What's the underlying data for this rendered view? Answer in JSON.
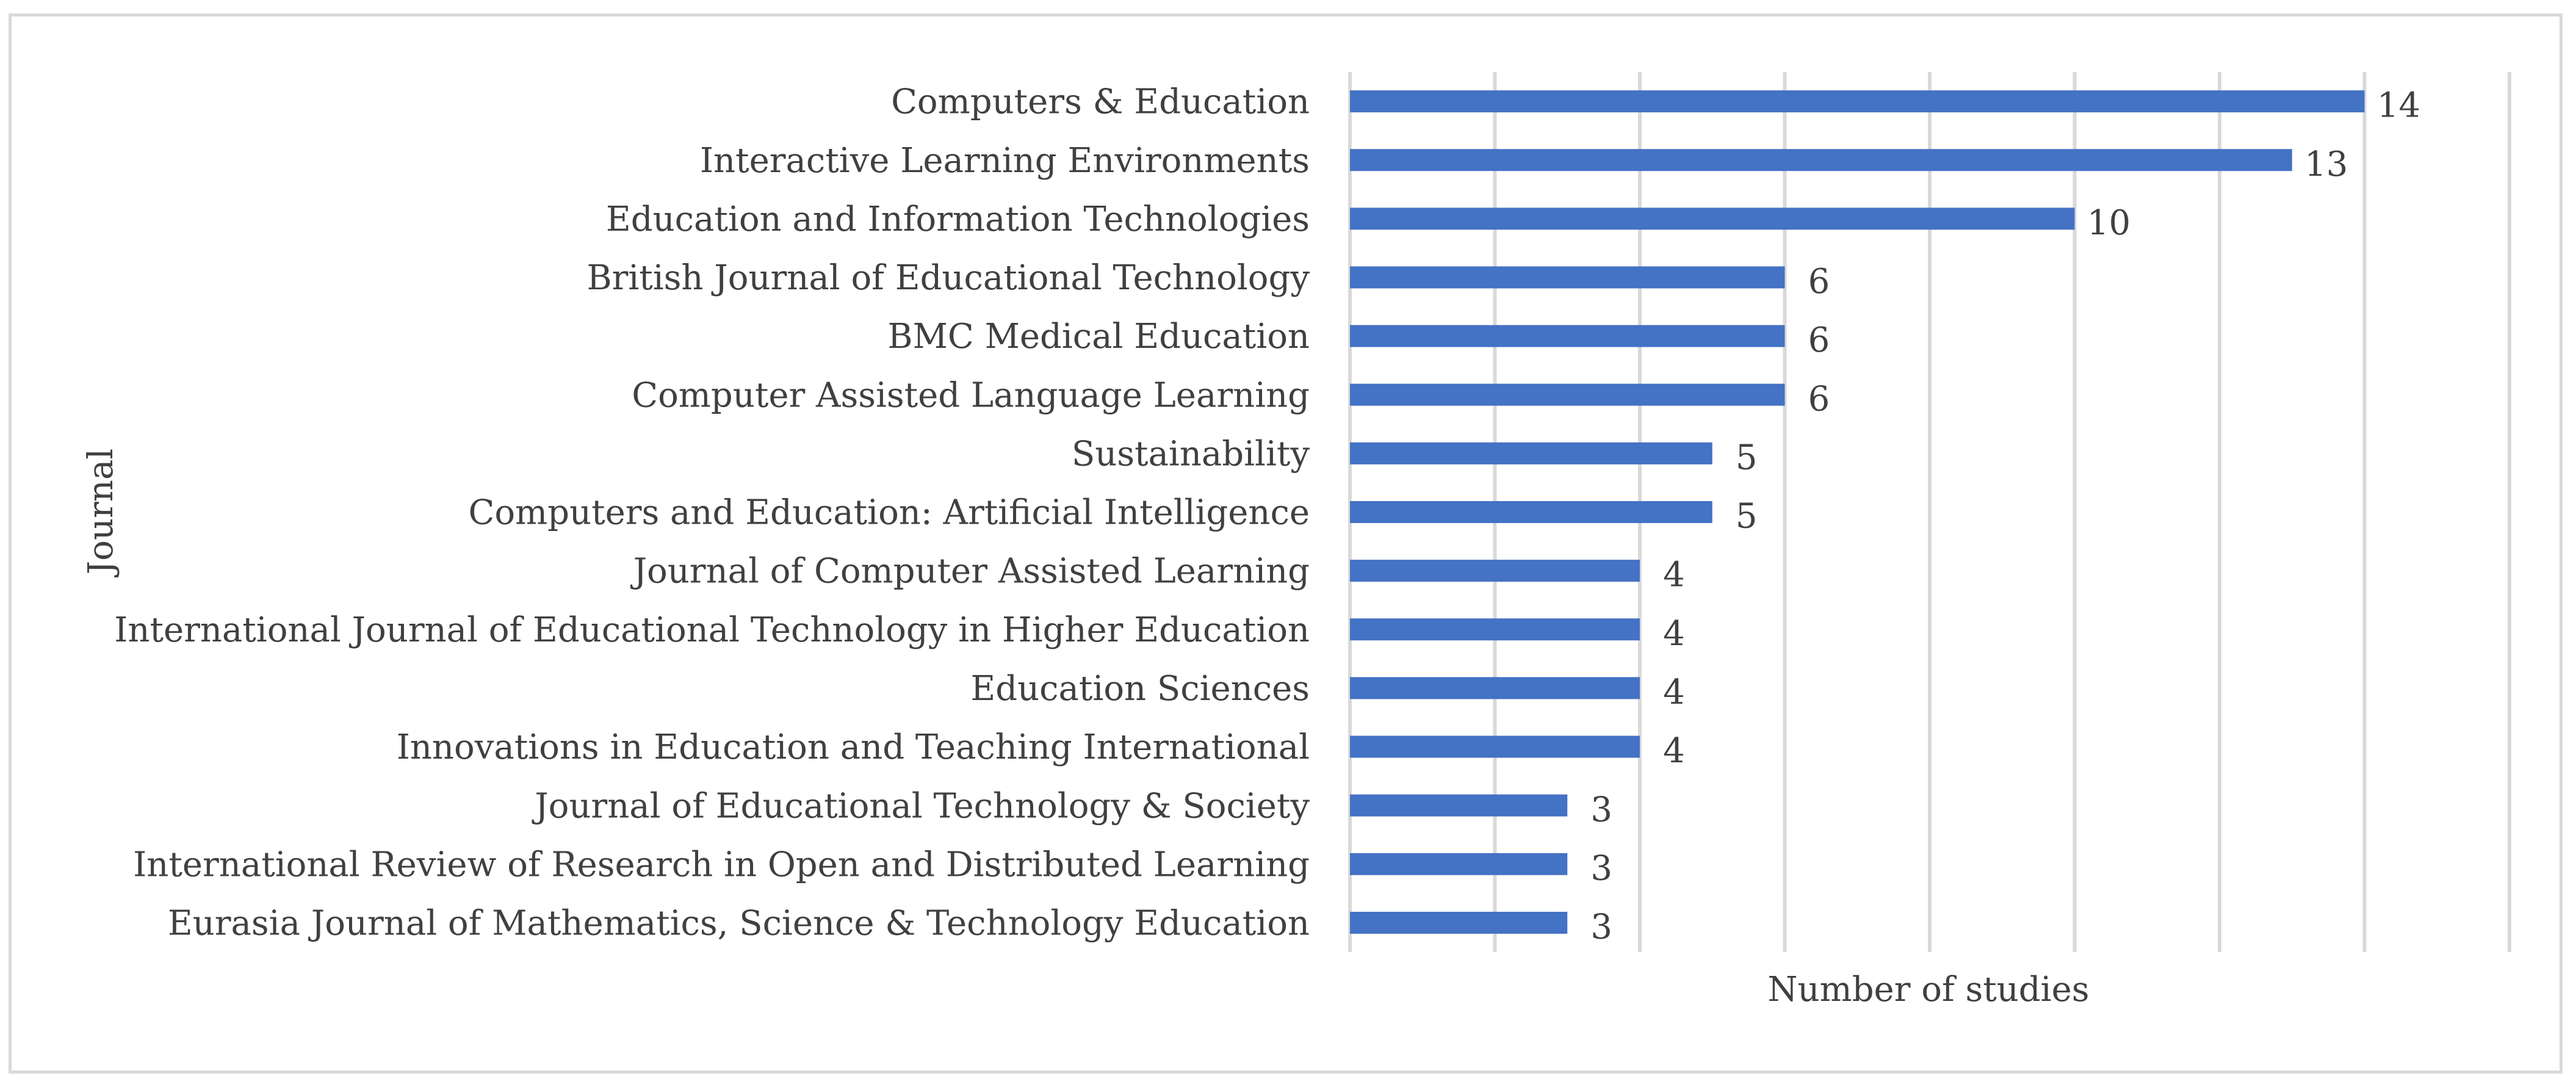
{
  "chart_data": {
    "type": "bar",
    "orientation": "horizontal",
    "title": "",
    "xlabel": "Number of studies",
    "ylabel": "Journal",
    "xlim": [
      0,
      16
    ],
    "grid": true,
    "bar_color": "#4472c4",
    "categories": [
      "Computers & Education",
      "Interactive Learning Environments",
      "Education and Information Technologies",
      "British Journal of Educational Technology",
      "BMC Medical Education",
      "Computer Assisted Language Learning",
      "Sustainability",
      "Computers and Education: Artificial Intelligence",
      "Journal of Computer Assisted Learning",
      "International Journal of Educational Technology in Higher Education",
      "Education Sciences",
      "Innovations in Education and Teaching International",
      "Journal of Educational Technology & Society",
      "International Review of Research in Open and Distributed Learning",
      "Eurasia Journal of Mathematics, Science & Technology Education"
    ],
    "values": [
      14,
      13,
      10,
      6,
      6,
      6,
      5,
      5,
      4,
      4,
      4,
      4,
      3,
      3,
      3
    ]
  }
}
